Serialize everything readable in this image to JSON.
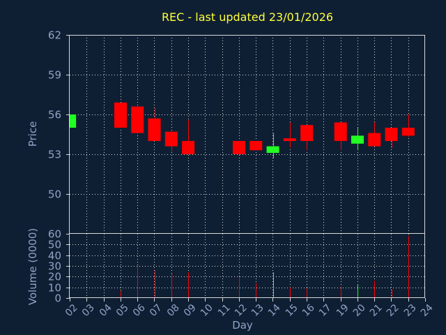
{
  "chart_data": {
    "type": "candlestick",
    "title": "REC - last updated 23/01/2026",
    "xlabel": "Day",
    "price_panel": {
      "ylabel": "Price",
      "ylim": [
        47,
        62
      ],
      "yticks": [
        50,
        53,
        56,
        59,
        62
      ],
      "grid": true
    },
    "volume_panel": {
      "ylabel": "Volume (0000)",
      "ylim": [
        0,
        60
      ],
      "yticks": [
        0,
        10,
        20,
        30,
        40,
        50,
        60
      ],
      "grid": true
    },
    "x_ticks": [
      "02",
      "03",
      "04",
      "05",
      "06",
      "07",
      "08",
      "09",
      "10",
      "11",
      "12",
      "13",
      "14",
      "15",
      "16",
      "17",
      "19",
      "20",
      "21",
      "22",
      "23",
      "24"
    ],
    "candles": [
      {
        "day": "02",
        "open": 55.0,
        "high": 56.0,
        "low": 55.0,
        "close": 56.0,
        "volume": 0
      },
      {
        "day": "05",
        "open": 56.9,
        "high": 56.9,
        "low": 55.0,
        "close": 55.0,
        "volume": 7
      },
      {
        "day": "06",
        "open": 56.6,
        "high": 56.6,
        "low": 54.6,
        "close": 54.6,
        "volume": 30
      },
      {
        "day": "07",
        "open": 55.7,
        "high": 56.5,
        "low": 54.0,
        "close": 54.0,
        "volume": 26
      },
      {
        "day": "08",
        "open": 54.7,
        "high": 54.7,
        "low": 53.2,
        "close": 53.6,
        "volume": 23
      },
      {
        "day": "09",
        "open": 54.0,
        "high": 55.6,
        "low": 53.0,
        "close": 53.0,
        "volume": 24
      },
      {
        "day": "12",
        "open": 54.0,
        "high": 54.0,
        "low": 53.0,
        "close": 53.0,
        "volume": 20
      },
      {
        "day": "13",
        "open": 54.0,
        "high": 54.0,
        "low": 53.3,
        "close": 53.3,
        "volume": 14
      },
      {
        "day": "14",
        "open": 53.1,
        "high": 54.6,
        "low": 52.7,
        "close": 53.6,
        "volume": 24
      },
      {
        "day": "15",
        "open": 54.2,
        "high": 55.4,
        "low": 53.5,
        "close": 54.0,
        "volume": 10
      },
      {
        "day": "16",
        "open": 55.2,
        "high": 55.2,
        "low": 53.3,
        "close": 54.0,
        "volume": 9
      },
      {
        "day": "19",
        "open": 55.4,
        "high": 55.4,
        "low": 53.3,
        "close": 54.0,
        "volume": 11
      },
      {
        "day": "20",
        "open": 53.8,
        "high": 55.0,
        "low": 53.3,
        "close": 54.4,
        "volume": 13
      },
      {
        "day": "21",
        "open": 54.6,
        "high": 55.4,
        "low": 53.6,
        "close": 53.6,
        "volume": 16
      },
      {
        "day": "22",
        "open": 55.0,
        "high": 55.0,
        "low": 53.5,
        "close": 54.0,
        "volume": 8
      },
      {
        "day": "23",
        "open": 55.0,
        "high": 56.0,
        "low": 54.3,
        "close": 54.4,
        "volume": 58
      }
    ],
    "colors": {
      "up": "#22ff22",
      "down": "#ff0000",
      "background": "#0f1f33",
      "title": "#ffff3c",
      "axis_text": "#8fa3c7",
      "grid": "#d9d9d9"
    }
  }
}
